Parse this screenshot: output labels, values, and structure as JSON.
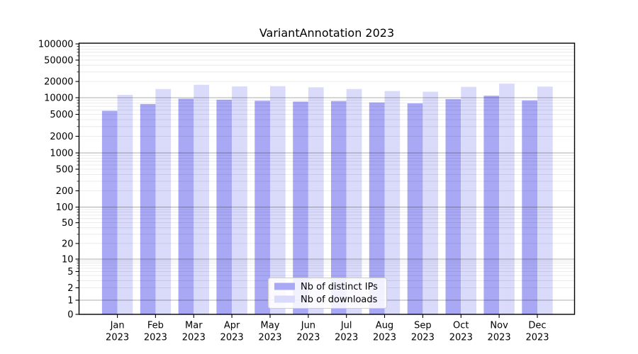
{
  "chart_data": {
    "type": "bar",
    "title": "VariantAnnotation 2023",
    "categories": [
      "Jan",
      "Feb",
      "Mar",
      "Apr",
      "May",
      "Jun",
      "Jul",
      "Aug",
      "Sep",
      "Oct",
      "Nov",
      "Dec"
    ],
    "year": "2023",
    "series": [
      {
        "name": "Nb of distinct IPs",
        "color": "#a8a8f5",
        "values": [
          5800,
          7700,
          9600,
          9200,
          8800,
          8500,
          8700,
          8200,
          7900,
          9400,
          10900,
          8900
        ]
      },
      {
        "name": "Nb of downloads",
        "color": "#dadafa",
        "values": [
          11300,
          14500,
          17400,
          16200,
          16400,
          15600,
          14500,
          13300,
          12900,
          15900,
          18300,
          16100
        ]
      }
    ],
    "yscale": "symlog",
    "ylim": [
      0,
      100000
    ],
    "y_ticks": [
      100000,
      50000,
      20000,
      10000,
      5000,
      2000,
      1000,
      500,
      200,
      100,
      50,
      20,
      10,
      5,
      2,
      1,
      0
    ],
    "grid": "both",
    "legend_position": "lower center"
  }
}
